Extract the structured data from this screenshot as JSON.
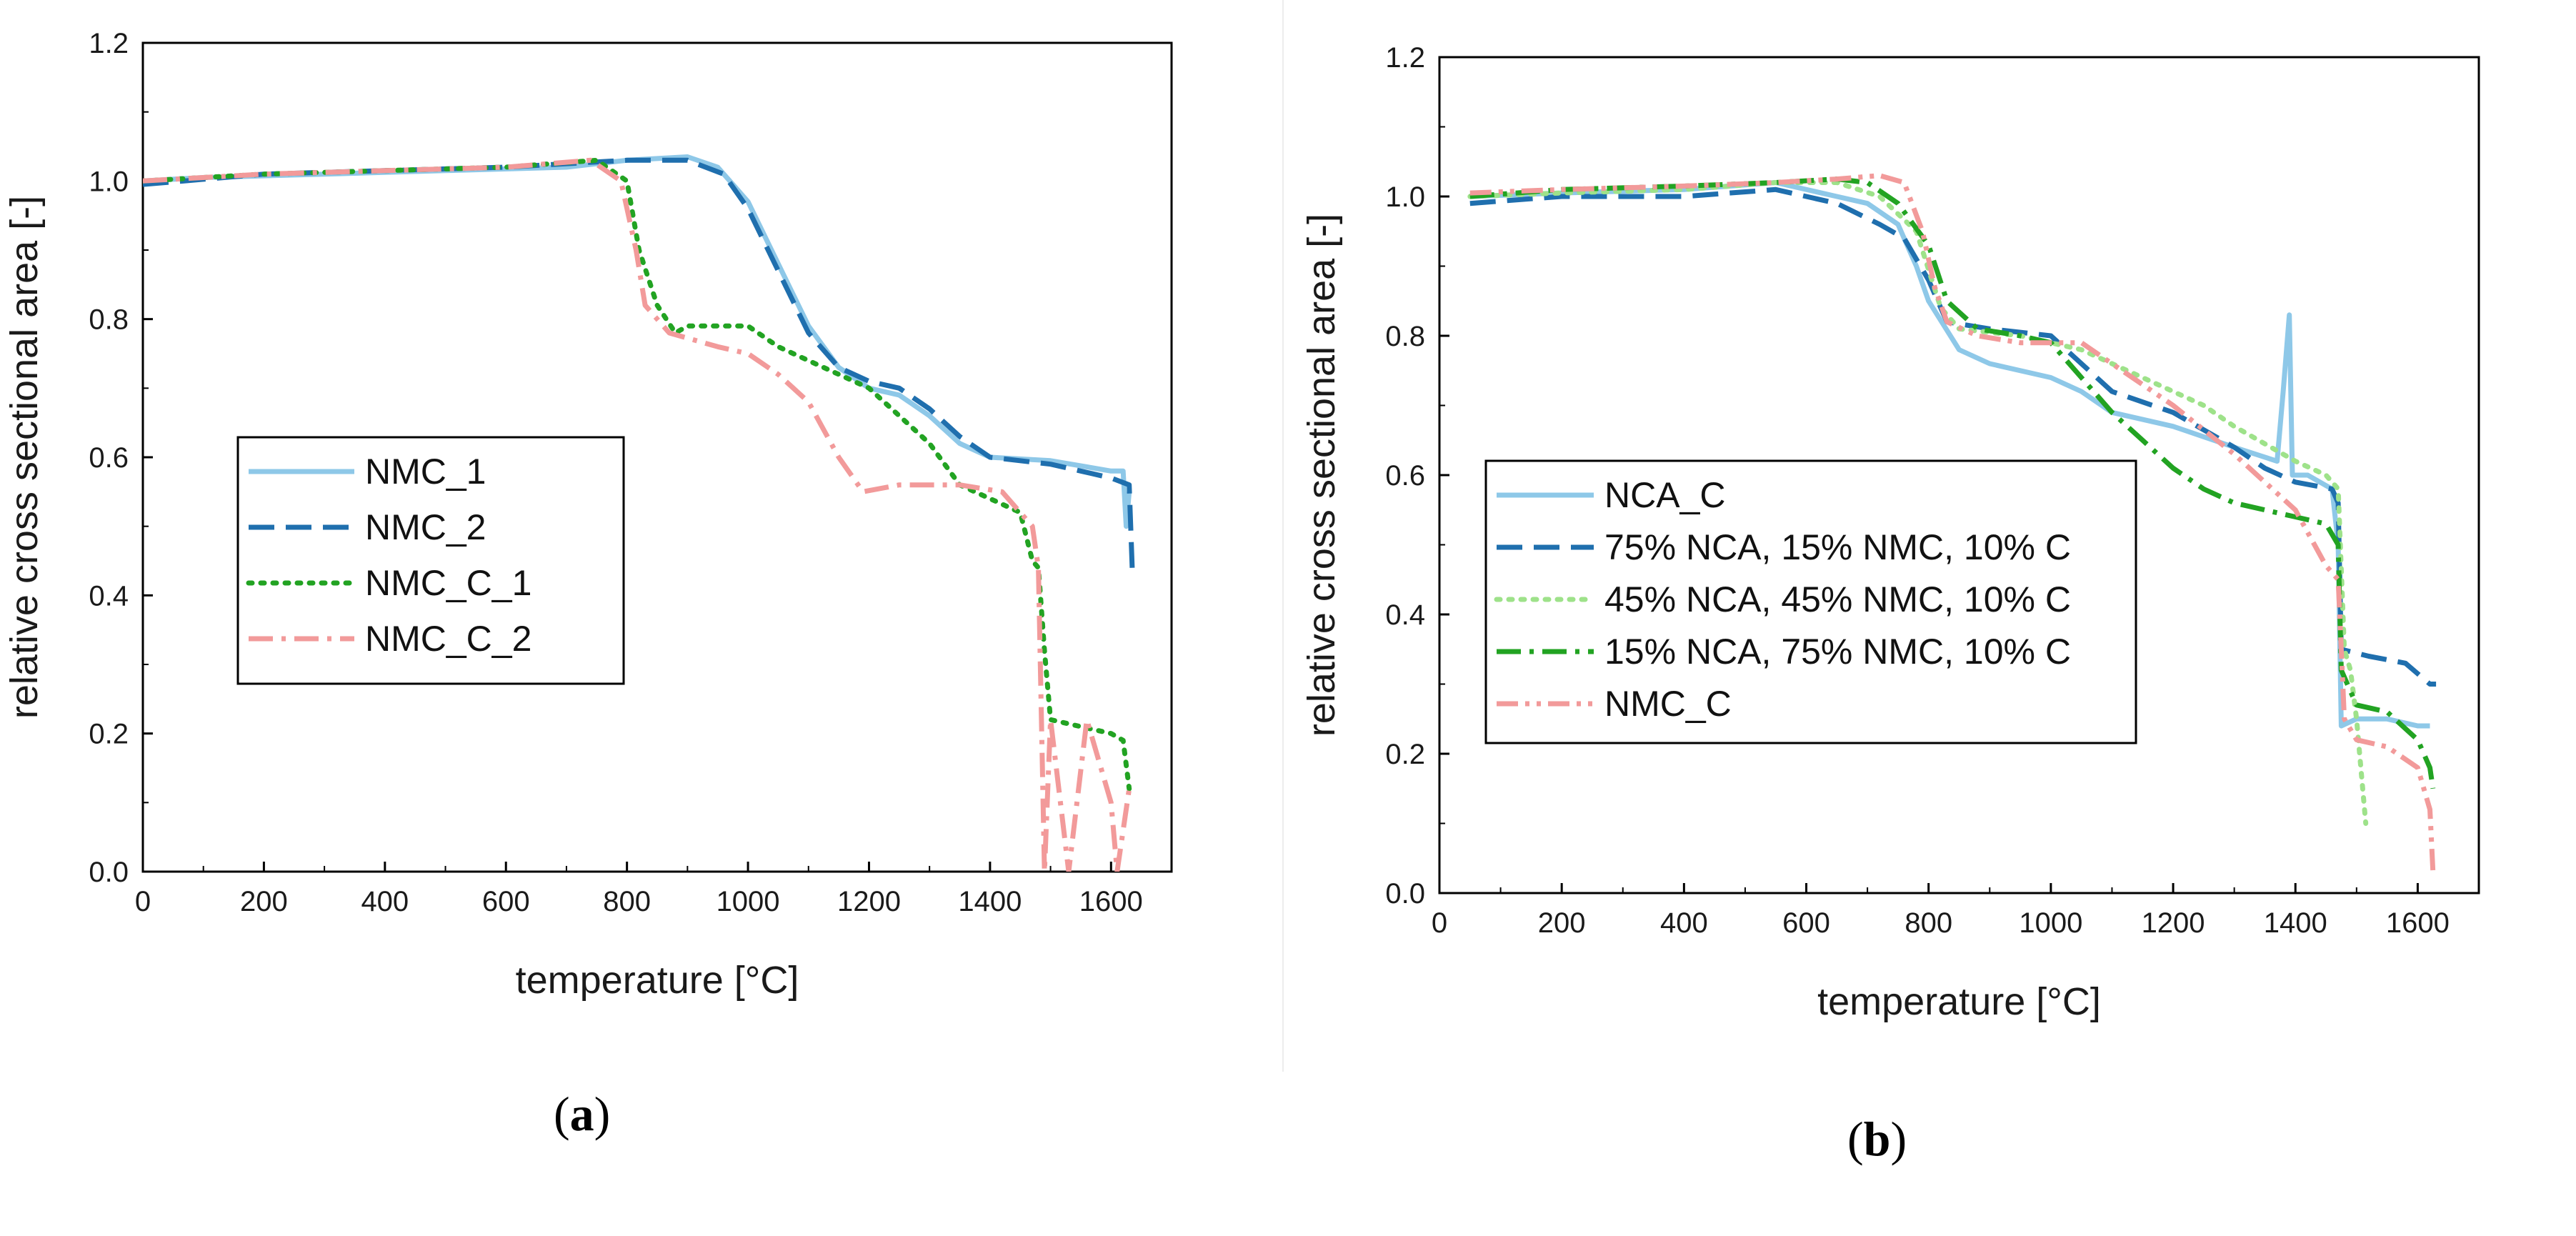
{
  "panels": {
    "a": {
      "label_open": "(",
      "label_letter": "a",
      "label_close": ")"
    },
    "b": {
      "label_open": "(",
      "label_letter": "b",
      "label_close": ")"
    }
  },
  "chart_data": [
    {
      "id": "a",
      "type": "line",
      "xlabel": "temperature [°C]",
      "ylabel": "relative cross sectional area [-]",
      "xlim": [
        0,
        1700
      ],
      "ylim": [
        0,
        1.2
      ],
      "xticks": [
        "0",
        "200",
        "400",
        "600",
        "800",
        "1000",
        "1200",
        "1400",
        "1600"
      ],
      "yticks": [
        "0.0",
        "0.2",
        "0.4",
        "0.6",
        "0.8",
        "1.0",
        "1.2"
      ],
      "legend_position": "center-left",
      "series": [
        {
          "name": "NMC_1",
          "color": "#8ec8e8",
          "style": "solid",
          "width": 7,
          "points": [
            [
              0,
              1.0
            ],
            [
              100,
              1.005
            ],
            [
              300,
              1.01
            ],
            [
              500,
              1.015
            ],
            [
              700,
              1.02
            ],
            [
              800,
              1.03
            ],
            [
              900,
              1.035
            ],
            [
              950,
              1.02
            ],
            [
              1000,
              0.97
            ],
            [
              1050,
              0.88
            ],
            [
              1100,
              0.79
            ],
            [
              1150,
              0.73
            ],
            [
              1200,
              0.7
            ],
            [
              1250,
              0.69
            ],
            [
              1300,
              0.66
            ],
            [
              1350,
              0.62
            ],
            [
              1400,
              0.6
            ],
            [
              1500,
              0.595
            ],
            [
              1600,
              0.58
            ],
            [
              1620,
              0.58
            ],
            [
              1625,
              0.5
            ],
            [
              1630,
              0.55
            ]
          ]
        },
        {
          "name": "NMC_2",
          "color": "#1f6fae",
          "style": "dashed",
          "width": 7,
          "points": [
            [
              0,
              0.995
            ],
            [
              200,
              1.01
            ],
            [
              400,
              1.015
            ],
            [
              600,
              1.02
            ],
            [
              800,
              1.03
            ],
            [
              900,
              1.03
            ],
            [
              960,
              1.01
            ],
            [
              1000,
              0.96
            ],
            [
              1050,
              0.87
            ],
            [
              1100,
              0.78
            ],
            [
              1150,
              0.73
            ],
            [
              1200,
              0.71
            ],
            [
              1250,
              0.7
            ],
            [
              1300,
              0.67
            ],
            [
              1350,
              0.63
            ],
            [
              1400,
              0.6
            ],
            [
              1500,
              0.59
            ],
            [
              1550,
              0.58
            ],
            [
              1600,
              0.57
            ],
            [
              1630,
              0.56
            ],
            [
              1635,
              0.44
            ]
          ]
        },
        {
          "name": "NMC_C_1",
          "color": "#22a322",
          "style": "dotted",
          "width": 7,
          "points": [
            [
              0,
              1.0
            ],
            [
              200,
              1.01
            ],
            [
              400,
              1.015
            ],
            [
              600,
              1.02
            ],
            [
              750,
              1.03
            ],
            [
              800,
              1.0
            ],
            [
              820,
              0.9
            ],
            [
              850,
              0.82
            ],
            [
              880,
              0.78
            ],
            [
              900,
              0.79
            ],
            [
              1000,
              0.79
            ],
            [
              1050,
              0.76
            ],
            [
              1100,
              0.74
            ],
            [
              1200,
              0.7
            ],
            [
              1300,
              0.62
            ],
            [
              1350,
              0.56
            ],
            [
              1400,
              0.54
            ],
            [
              1450,
              0.52
            ],
            [
              1470,
              0.45
            ],
            [
              1480,
              0.44
            ],
            [
              1490,
              0.32
            ],
            [
              1500,
              0.22
            ],
            [
              1550,
              0.21
            ],
            [
              1600,
              0.2
            ],
            [
              1620,
              0.19
            ],
            [
              1630,
              0.12
            ]
          ]
        },
        {
          "name": "NMC_C_2",
          "color": "#f29a9a",
          "style": "dashdot",
          "width": 7,
          "points": [
            [
              0,
              1.0
            ],
            [
              200,
              1.01
            ],
            [
              400,
              1.015
            ],
            [
              600,
              1.02
            ],
            [
              740,
              1.03
            ],
            [
              790,
              1.0
            ],
            [
              815,
              0.9
            ],
            [
              830,
              0.82
            ],
            [
              870,
              0.78
            ],
            [
              950,
              0.76
            ],
            [
              1000,
              0.75
            ],
            [
              1050,
              0.72
            ],
            [
              1100,
              0.68
            ],
            [
              1150,
              0.6
            ],
            [
              1190,
              0.55
            ],
            [
              1250,
              0.56
            ],
            [
              1350,
              0.56
            ],
            [
              1420,
              0.55
            ],
            [
              1470,
              0.5
            ],
            [
              1480,
              0.44
            ],
            [
              1490,
              0.0
            ],
            [
              1500,
              0.22
            ],
            [
              1530,
              0.0
            ],
            [
              1560,
              0.22
            ],
            [
              1600,
              0.1
            ],
            [
              1610,
              0.0
            ],
            [
              1630,
              0.12
            ]
          ]
        }
      ]
    },
    {
      "id": "b",
      "type": "line",
      "xlabel": "temperature [°C]",
      "ylabel": "relative cross sectional area [-]",
      "xlim": [
        0,
        1700
      ],
      "ylim": [
        0,
        1.2
      ],
      "xticks": [
        "0",
        "200",
        "400",
        "600",
        "800",
        "1000",
        "1200",
        "1400",
        "1600"
      ],
      "yticks": [
        "0.0",
        "0.2",
        "0.4",
        "0.6",
        "0.8",
        "1.0",
        "1.2"
      ],
      "legend_position": "center-left",
      "series": [
        {
          "name": "NCA_C",
          "color": "#8ec8e8",
          "style": "solid",
          "width": 7,
          "points": [
            [
              50,
              1.0
            ],
            [
              200,
              1.005
            ],
            [
              400,
              1.01
            ],
            [
              550,
              1.02
            ],
            [
              650,
              1.0
            ],
            [
              700,
              0.99
            ],
            [
              750,
              0.96
            ],
            [
              780,
              0.9
            ],
            [
              800,
              0.85
            ],
            [
              850,
              0.78
            ],
            [
              900,
              0.76
            ],
            [
              1000,
              0.74
            ],
            [
              1050,
              0.72
            ],
            [
              1100,
              0.69
            ],
            [
              1200,
              0.67
            ],
            [
              1300,
              0.64
            ],
            [
              1370,
              0.62
            ],
            [
              1380,
              0.72
            ],
            [
              1390,
              0.83
            ],
            [
              1395,
              0.6
            ],
            [
              1420,
              0.6
            ],
            [
              1460,
              0.58
            ],
            [
              1470,
              0.5
            ],
            [
              1475,
              0.24
            ],
            [
              1500,
              0.25
            ],
            [
              1550,
              0.25
            ],
            [
              1600,
              0.24
            ],
            [
              1620,
              0.24
            ]
          ]
        },
        {
          "name": "75% NCA, 15% NMC, 10% C",
          "color": "#1f6fae",
          "style": "dashed",
          "width": 7,
          "points": [
            [
              50,
              0.99
            ],
            [
              200,
              1.0
            ],
            [
              400,
              1.0
            ],
            [
              550,
              1.01
            ],
            [
              650,
              0.99
            ],
            [
              720,
              0.96
            ],
            [
              760,
              0.94
            ],
            [
              800,
              0.88
            ],
            [
              830,
              0.82
            ],
            [
              900,
              0.81
            ],
            [
              1000,
              0.8
            ],
            [
              1100,
              0.72
            ],
            [
              1200,
              0.69
            ],
            [
              1300,
              0.64
            ],
            [
              1350,
              0.61
            ],
            [
              1400,
              0.59
            ],
            [
              1460,
              0.58
            ],
            [
              1470,
              0.56
            ],
            [
              1475,
              0.35
            ],
            [
              1520,
              0.34
            ],
            [
              1580,
              0.33
            ],
            [
              1620,
              0.3
            ],
            [
              1630,
              0.3
            ]
          ]
        },
        {
          "name": "45% NCA, 45% NMC, 10% C",
          "color": "#9ee28a",
          "style": "dotted",
          "width": 7,
          "points": [
            [
              50,
              1.0
            ],
            [
              200,
              1.005
            ],
            [
              400,
              1.01
            ],
            [
              550,
              1.02
            ],
            [
              650,
              1.02
            ],
            [
              720,
              1.0
            ],
            [
              780,
              0.95
            ],
            [
              820,
              0.84
            ],
            [
              850,
              0.81
            ],
            [
              950,
              0.8
            ],
            [
              1050,
              0.78
            ],
            [
              1150,
              0.74
            ],
            [
              1250,
              0.7
            ],
            [
              1300,
              0.67
            ],
            [
              1400,
              0.62
            ],
            [
              1450,
              0.6
            ],
            [
              1470,
              0.58
            ],
            [
              1480,
              0.35
            ],
            [
              1490,
              0.32
            ],
            [
              1500,
              0.25
            ],
            [
              1510,
              0.15
            ],
            [
              1515,
              0.1
            ]
          ]
        },
        {
          "name": "15% NCA, 75% NMC, 10% C",
          "color": "#22a322",
          "style": "dashdot",
          "width": 7,
          "points": [
            [
              50,
              1.0
            ],
            [
              200,
              1.01
            ],
            [
              400,
              1.015
            ],
            [
              550,
              1.02
            ],
            [
              650,
              1.025
            ],
            [
              700,
              1.02
            ],
            [
              750,
              0.99
            ],
            [
              800,
              0.93
            ],
            [
              830,
              0.85
            ],
            [
              880,
              0.81
            ],
            [
              950,
              0.8
            ],
            [
              1000,
              0.79
            ],
            [
              1050,
              0.74
            ],
            [
              1100,
              0.69
            ],
            [
              1150,
              0.65
            ],
            [
              1200,
              0.61
            ],
            [
              1250,
              0.58
            ],
            [
              1300,
              0.56
            ],
            [
              1400,
              0.54
            ],
            [
              1450,
              0.53
            ],
            [
              1470,
              0.5
            ],
            [
              1475,
              0.32
            ],
            [
              1500,
              0.27
            ],
            [
              1550,
              0.26
            ],
            [
              1600,
              0.22
            ],
            [
              1620,
              0.18
            ],
            [
              1625,
              0.15
            ]
          ]
        },
        {
          "name": "NMC_C",
          "color": "#f29a9a",
          "style": "dashdotdot",
          "width": 7,
          "points": [
            [
              50,
              1.005
            ],
            [
              200,
              1.01
            ],
            [
              400,
              1.015
            ],
            [
              550,
              1.02
            ],
            [
              650,
              1.025
            ],
            [
              720,
              1.03
            ],
            [
              760,
              1.02
            ],
            [
              790,
              0.95
            ],
            [
              810,
              0.87
            ],
            [
              830,
              0.82
            ],
            [
              880,
              0.8
            ],
            [
              950,
              0.79
            ],
            [
              1050,
              0.79
            ],
            [
              1100,
              0.76
            ],
            [
              1200,
              0.7
            ],
            [
              1300,
              0.63
            ],
            [
              1350,
              0.59
            ],
            [
              1400,
              0.55
            ],
            [
              1450,
              0.47
            ],
            [
              1470,
              0.45
            ],
            [
              1480,
              0.25
            ],
            [
              1500,
              0.22
            ],
            [
              1550,
              0.21
            ],
            [
              1600,
              0.18
            ],
            [
              1620,
              0.12
            ],
            [
              1625,
              0.03
            ]
          ]
        }
      ]
    }
  ]
}
